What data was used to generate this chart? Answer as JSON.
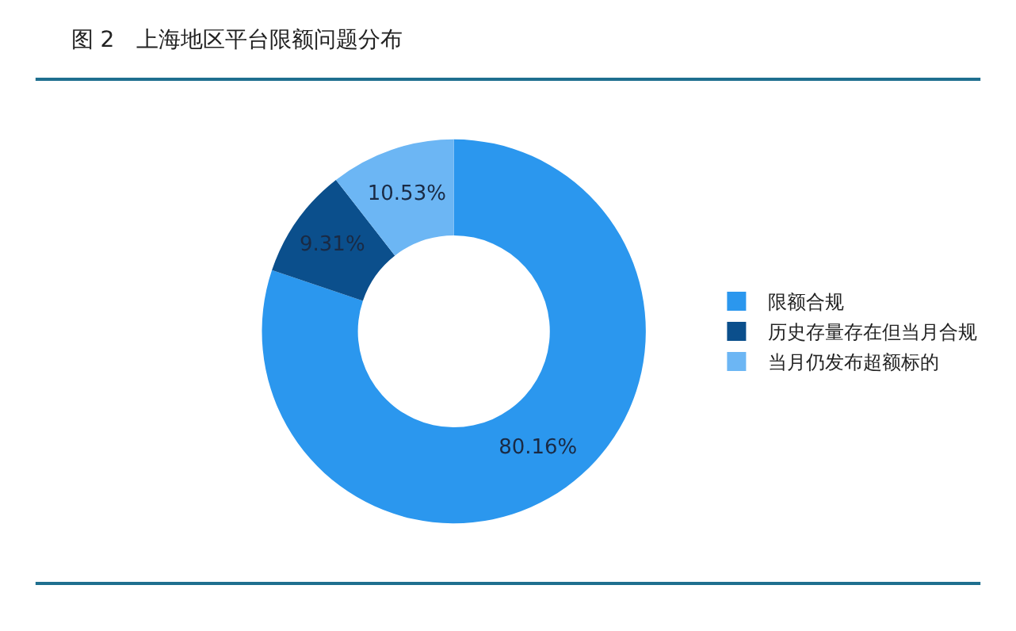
{
  "chart_data": {
    "type": "donut",
    "title": "图 2　上海地区平台限额问题分布",
    "categories": [
      "限额合规",
      "历史存量存在但当月合规",
      "当月仍发布超额标的"
    ],
    "values": [
      80.16,
      9.31,
      10.53
    ],
    "colors": [
      "#2b97ee",
      "#0b4f8c",
      "#6cb6f4"
    ],
    "value_labels": [
      "80.16%",
      "9.31%",
      "10.53%"
    ],
    "legend": "right"
  }
}
